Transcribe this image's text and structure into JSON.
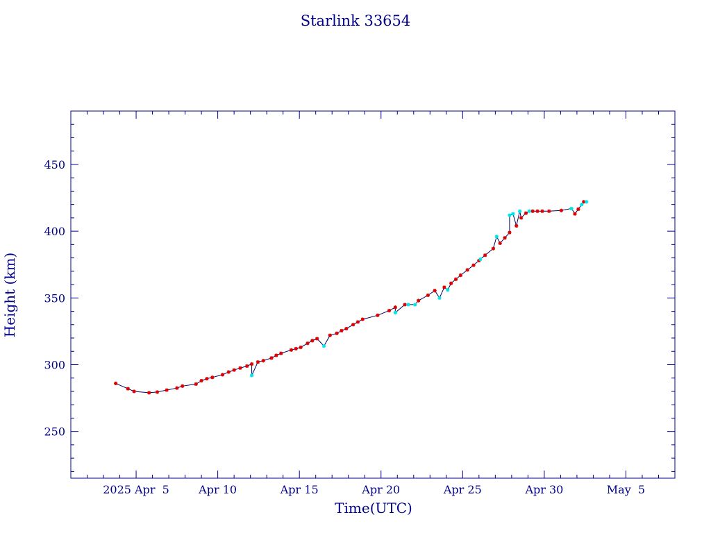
{
  "chart_data": {
    "type": "scatter",
    "title": "Starlink 33654",
    "xlabel": "Time(UTC)",
    "ylabel": "Height (km)",
    "x_unit": "day of 2025",
    "xlim": [
      "2025-04-01",
      "2025-05-08"
    ],
    "ylim": [
      215,
      490
    ],
    "x_tick_labels": [
      "2025 Apr  5",
      "Apr 10",
      "Apr 15",
      "Apr 20",
      "Apr 25",
      "Apr 30",
      "May  5"
    ],
    "x_tick_values": [
      "2025-04-05",
      "2025-04-10",
      "2025-04-15",
      "2025-04-20",
      "2025-04-25",
      "2025-04-30",
      "2025-05-05"
    ],
    "y_ticks": [
      250,
      300,
      350,
      400,
      450
    ],
    "grid": false,
    "colors": {
      "axis": "#00008b",
      "line": "#000066",
      "red_marker": "#dd0000",
      "cyan_marker": "#00e5e5"
    },
    "series": [
      {
        "marker": "red",
        "x": [
          "2025-04-03 18:00",
          "2025-04-04 12:00",
          "2025-04-04 21:00",
          "2025-04-05 19:00",
          "2025-04-06 07:00",
          "2025-04-06 21:00",
          "2025-04-07 12:00",
          "2025-04-07 20:00",
          "2025-04-08 16:00",
          "2025-04-09 00:00",
          "2025-04-09 08:00",
          "2025-04-09 16:00",
          "2025-04-10 07:00",
          "2025-04-10 16:00",
          "2025-04-11 00:00",
          "2025-04-11 09:00",
          "2025-04-11 19:00",
          "2025-04-12 02:00",
          "2025-04-12 11:00",
          "2025-04-12 19:00",
          "2025-04-13 07:00",
          "2025-04-13 14:00",
          "2025-04-13 21:00",
          "2025-04-14 12:00",
          "2025-04-14 19:00",
          "2025-04-15 02:00",
          "2025-04-15 12:00",
          "2025-04-15 19:00",
          "2025-04-16 02:00",
          "2025-04-16 21:00",
          "2025-04-17 07:00",
          "2025-04-17 14:00",
          "2025-04-17 21:00",
          "2025-04-18 07:00",
          "2025-04-18 14:00",
          "2025-04-18 21:00",
          "2025-04-19 19:00",
          "2025-04-20 12:00",
          "2025-04-20 21:00",
          "2025-04-21 11:00",
          "2025-04-22 07:00",
          "2025-04-22 21:00",
          "2025-04-23 07:00",
          "2025-04-23 21:00",
          "2025-04-24 07:00",
          "2025-04-24 14:00",
          "2025-04-24 21:00",
          "2025-04-25 07:00",
          "2025-04-25 16:00",
          "2025-04-26 00:00",
          "2025-04-26 09:00",
          "2025-04-26 21:00",
          "2025-04-27 07:00",
          "2025-04-27 14:00",
          "2025-04-27 21:00",
          "2025-04-28 07:00",
          "2025-04-28 14:00",
          "2025-04-28 21:00",
          "2025-04-29 07:00",
          "2025-04-29 14:00",
          "2025-04-29 21:00",
          "2025-04-30 07:00",
          "2025-05-01 01:00",
          "2025-05-01 21:00",
          "2025-05-02 02:00",
          "2025-05-02 10:00"
        ],
        "y": [
          286,
          282,
          280,
          279,
          279.5,
          281,
          282.5,
          284,
          285.5,
          288,
          289.5,
          290.5,
          292.5,
          294.5,
          296,
          297.5,
          299,
          300.5,
          302,
          303,
          305,
          307,
          308.5,
          311,
          312,
          313,
          316,
          318,
          319.5,
          322,
          323.5,
          325.5,
          327,
          330,
          332,
          334,
          337,
          340.5,
          343,
          345,
          348,
          352,
          355.5,
          358,
          361,
          364,
          367,
          371,
          374.5,
          378,
          382,
          387,
          391,
          395,
          399,
          404,
          410,
          413.5,
          415,
          415,
          415,
          415,
          415.5,
          413,
          416.5,
          422
        ]
      },
      {
        "marker": "cyan",
        "x": [
          "2025-04-12 02:00",
          "2025-04-16 12:00",
          "2025-04-20 21:00",
          "2025-04-21 16:00",
          "2025-04-22 02:00",
          "2025-04-23 14:00",
          "2025-04-24 02:00",
          "2025-04-26 02:00",
          "2025-04-27 02:00",
          "2025-04-27 21:00",
          "2025-04-28 02:00",
          "2025-04-28 12:00",
          "2025-04-29 02:00",
          "2025-05-01 16:00",
          "2025-05-02 07:00",
          "2025-05-02 14:00"
        ],
        "y": [
          292,
          314,
          339,
          345,
          345,
          350,
          356,
          379,
          396,
          412,
          413,
          415,
          415,
          417,
          420,
          422
        ]
      }
    ]
  }
}
